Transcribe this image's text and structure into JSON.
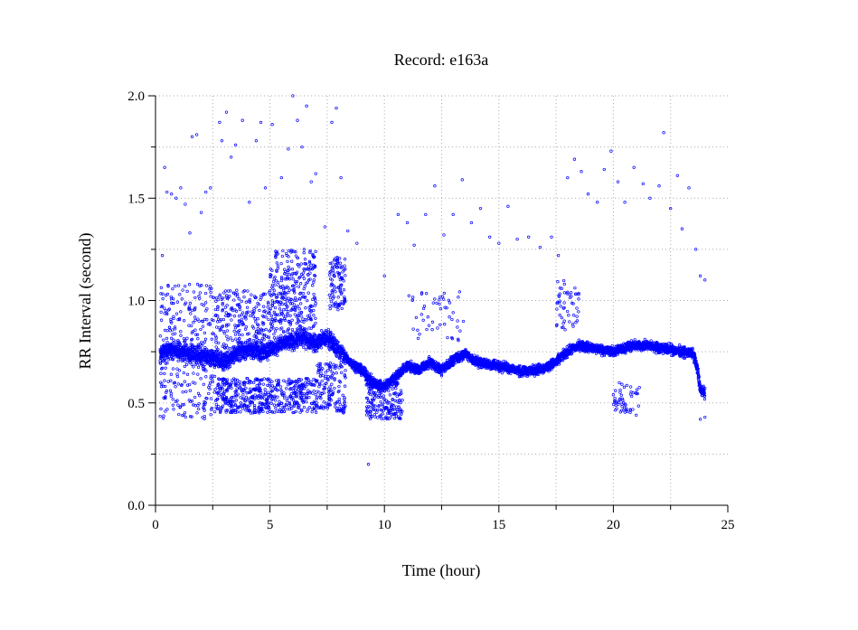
{
  "chart_data": {
    "type": "scatter",
    "title": "Record:  e163a",
    "xlabel": "Time (hour)",
    "ylabel": "RR Interval (second)",
    "xlim": [
      0,
      25
    ],
    "ylim": [
      0,
      2.0
    ],
    "x_ticks": [
      0,
      5,
      10,
      15,
      20,
      25
    ],
    "x_tick_labels": [
      "0",
      "5",
      "10",
      "15",
      "20",
      "25"
    ],
    "y_ticks": [
      0.0,
      0.5,
      1.0,
      1.5,
      2.0
    ],
    "y_tick_labels": [
      "0.0",
      "0.5",
      "1.0",
      "1.5",
      "2.0"
    ],
    "grid": "dotted",
    "marker": "open-circle",
    "marker_color": "#0000ff",
    "series": [
      {
        "trend": [
          [
            0.2,
            0.73
          ],
          [
            0.5,
            0.76
          ],
          [
            1.0,
            0.75
          ],
          [
            1.5,
            0.74
          ],
          [
            2.0,
            0.73
          ],
          [
            2.5,
            0.72
          ],
          [
            3.0,
            0.7
          ],
          [
            3.5,
            0.74
          ],
          [
            4.0,
            0.76
          ],
          [
            4.5,
            0.75
          ],
          [
            5.0,
            0.76
          ],
          [
            5.5,
            0.79
          ],
          [
            6.0,
            0.8
          ],
          [
            6.5,
            0.82
          ],
          [
            7.0,
            0.79
          ],
          [
            7.5,
            0.82
          ],
          [
            8.0,
            0.76
          ],
          [
            8.5,
            0.7
          ],
          [
            9.0,
            0.66
          ],
          [
            9.5,
            0.6
          ],
          [
            10.0,
            0.58
          ],
          [
            10.5,
            0.63
          ],
          [
            11.0,
            0.68
          ],
          [
            11.5,
            0.66
          ],
          [
            12.0,
            0.7
          ],
          [
            12.5,
            0.66
          ],
          [
            13.0,
            0.71
          ],
          [
            13.5,
            0.74
          ],
          [
            14.0,
            0.7
          ],
          [
            14.5,
            0.69
          ],
          [
            15.0,
            0.68
          ],
          [
            15.5,
            0.67
          ],
          [
            16.0,
            0.65
          ],
          [
            16.5,
            0.66
          ],
          [
            17.0,
            0.67
          ],
          [
            17.5,
            0.7
          ],
          [
            18.0,
            0.75
          ],
          [
            18.5,
            0.78
          ],
          [
            19.0,
            0.77
          ],
          [
            19.5,
            0.76
          ],
          [
            20.0,
            0.75
          ],
          [
            20.5,
            0.77
          ],
          [
            21.0,
            0.78
          ],
          [
            21.5,
            0.78
          ],
          [
            22.0,
            0.77
          ],
          [
            22.5,
            0.76
          ],
          [
            23.0,
            0.75
          ],
          [
            23.5,
            0.74
          ],
          [
            23.7,
            0.65
          ],
          [
            23.8,
            0.56
          ],
          [
            24.0,
            0.55
          ]
        ],
        "clusters": [
          {
            "x": [
              0.2,
              2.6
            ],
            "y": [
              0.42,
              1.08
            ],
            "weight": 0.06
          },
          {
            "x": [
              2.6,
              7.0
            ],
            "y": [
              0.45,
              0.62
            ],
            "weight": 0.1
          },
          {
            "x": [
              2.6,
              5.2
            ],
            "y": [
              0.75,
              1.05
            ],
            "weight": 0.05
          },
          {
            "x": [
              5.0,
              7.0
            ],
            "y": [
              0.85,
              1.25
            ],
            "weight": 0.06
          },
          {
            "x": [
              7.0,
              8.3
            ],
            "y": [
              0.45,
              0.7
            ],
            "weight": 0.03
          },
          {
            "x": [
              7.6,
              8.3
            ],
            "y": [
              0.95,
              1.22
            ],
            "weight": 0.02
          },
          {
            "x": [
              9.2,
              10.8
            ],
            "y": [
              0.42,
              0.6
            ],
            "weight": 0.04
          },
          {
            "x": [
              11.0,
              13.5
            ],
            "y": [
              0.8,
              1.05
            ],
            "weight": 0.01
          },
          {
            "x": [
              17.5,
              18.5
            ],
            "y": [
              0.85,
              1.1
            ],
            "weight": 0.01
          },
          {
            "x": [
              20.0,
              21.2
            ],
            "y": [
              0.45,
              0.6
            ],
            "weight": 0.01
          }
        ],
        "outliers": [
          [
            0.3,
            1.22
          ],
          [
            0.4,
            1.65
          ],
          [
            0.5,
            1.53
          ],
          [
            0.7,
            1.52
          ],
          [
            0.9,
            1.5
          ],
          [
            1.1,
            1.55
          ],
          [
            1.3,
            1.47
          ],
          [
            1.5,
            1.33
          ],
          [
            1.6,
            1.8
          ],
          [
            1.8,
            1.81
          ],
          [
            2.0,
            1.43
          ],
          [
            2.2,
            1.53
          ],
          [
            2.4,
            1.55
          ],
          [
            2.8,
            1.87
          ],
          [
            2.9,
            1.78
          ],
          [
            3.1,
            1.92
          ],
          [
            3.3,
            1.7
          ],
          [
            3.5,
            1.76
          ],
          [
            3.8,
            1.88
          ],
          [
            4.1,
            1.48
          ],
          [
            4.4,
            1.78
          ],
          [
            4.6,
            1.87
          ],
          [
            4.8,
            1.55
          ],
          [
            5.1,
            1.86
          ],
          [
            5.5,
            1.6
          ],
          [
            5.8,
            1.74
          ],
          [
            6.0,
            2.0
          ],
          [
            6.2,
            1.88
          ],
          [
            6.4,
            1.75
          ],
          [
            6.6,
            1.95
          ],
          [
            6.8,
            1.58
          ],
          [
            7.0,
            1.62
          ],
          [
            7.4,
            1.36
          ],
          [
            7.7,
            1.87
          ],
          [
            7.9,
            1.94
          ],
          [
            8.1,
            1.6
          ],
          [
            8.4,
            1.34
          ],
          [
            8.8,
            1.28
          ],
          [
            9.3,
            0.2
          ],
          [
            10.0,
            1.12
          ],
          [
            10.6,
            1.42
          ],
          [
            11.0,
            1.38
          ],
          [
            11.3,
            1.27
          ],
          [
            11.8,
            1.42
          ],
          [
            12.2,
            1.56
          ],
          [
            12.6,
            1.32
          ],
          [
            13.0,
            1.42
          ],
          [
            13.4,
            1.59
          ],
          [
            13.8,
            1.38
          ],
          [
            14.2,
            1.45
          ],
          [
            14.6,
            1.31
          ],
          [
            15.0,
            1.28
          ],
          [
            15.4,
            1.46
          ],
          [
            15.8,
            1.3
          ],
          [
            16.3,
            1.31
          ],
          [
            16.8,
            1.26
          ],
          [
            17.3,
            1.31
          ],
          [
            17.6,
            1.22
          ],
          [
            18.0,
            1.6
          ],
          [
            18.3,
            1.69
          ],
          [
            18.6,
            1.63
          ],
          [
            18.9,
            1.52
          ],
          [
            19.3,
            1.48
          ],
          [
            19.6,
            1.64
          ],
          [
            19.9,
            1.73
          ],
          [
            20.2,
            1.58
          ],
          [
            20.5,
            1.48
          ],
          [
            20.9,
            1.65
          ],
          [
            21.3,
            1.57
          ],
          [
            21.6,
            1.5
          ],
          [
            22.0,
            1.56
          ],
          [
            22.2,
            1.82
          ],
          [
            22.5,
            1.45
          ],
          [
            22.8,
            1.61
          ],
          [
            23.0,
            1.35
          ],
          [
            23.3,
            1.55
          ],
          [
            23.6,
            1.25
          ],
          [
            23.8,
            1.12
          ],
          [
            24.0,
            1.1
          ],
          [
            21.0,
            0.44
          ],
          [
            23.8,
            0.42
          ],
          [
            24.0,
            0.43
          ]
        ]
      }
    ]
  }
}
